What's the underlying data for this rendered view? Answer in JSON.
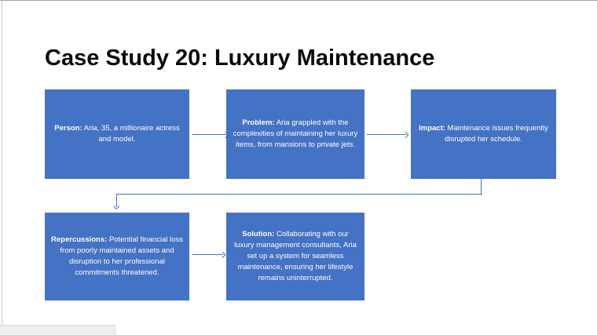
{
  "slide": {
    "title": "Case Study 20: Luxury Maintenance"
  },
  "colors": {
    "box_fill": "#4472C4",
    "connector": "#4472C4",
    "box_text": "#FFFFFF",
    "title_text": "#0B0B0B",
    "background": "#FFFFFF"
  },
  "boxes": [
    {
      "name": "person",
      "label": "Person:",
      "text": " Aria, 35, a millionaire actress and model."
    },
    {
      "name": "problem",
      "label": "Problem:",
      "text": " Aria grappled with the complexities of maintaining her luxury items, from mansions to private jets."
    },
    {
      "name": "impact",
      "label": "Impact:",
      "text": " Maintenance issues frequently disrupted her schedule."
    },
    {
      "name": "repercussions",
      "label": "Repercussions:",
      "text": " Potential financial loss from poorly maintained assets and disruption to her professional commitments threatened."
    },
    {
      "name": "solution",
      "label": "Solution:",
      "text": " Collaborating with our luxury management consultants, Aria set up a system for seamless maintenance, ensuring her lifestyle remains uninterrupted."
    }
  ],
  "connectors": [
    {
      "from": "person",
      "to": "problem",
      "type": "straight-arrow"
    },
    {
      "from": "problem",
      "to": "impact",
      "type": "straight-arrow"
    },
    {
      "from": "impact",
      "to": "repercussions",
      "type": "elbow-arrow"
    },
    {
      "from": "repercussions",
      "to": "solution",
      "type": "straight-arrow"
    }
  ]
}
